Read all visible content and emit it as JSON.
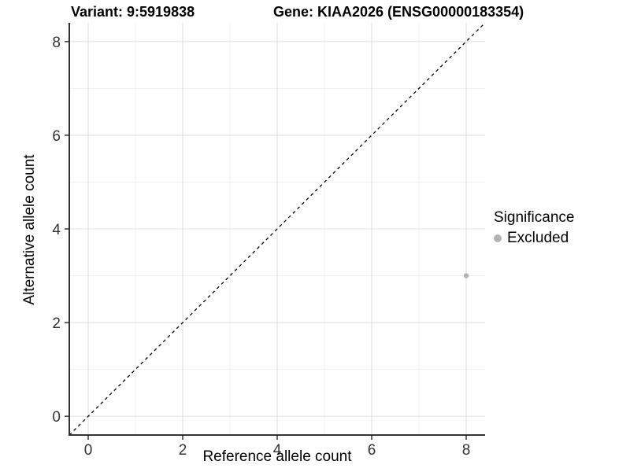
{
  "header": {
    "variant_title": "Variant: 9:5919838",
    "gene_title": "Gene: KIAA2026 (ENSG00000183354)"
  },
  "legend": {
    "title": "Significance",
    "items": [
      {
        "label": "Excluded",
        "color": "#b3b3b3"
      }
    ]
  },
  "chart_data": {
    "type": "scatter",
    "titles": [
      "Variant: 9:5919838",
      "Gene: KIAA2026 (ENSG00000183354)"
    ],
    "xlabel": "Reference allele count",
    "ylabel": "Alternative allele count",
    "xlim": [
      -0.4,
      8.4
    ],
    "ylim": [
      -0.4,
      8.4
    ],
    "x_ticks": [
      0,
      2,
      4,
      6,
      8
    ],
    "y_ticks": [
      0,
      2,
      4,
      6,
      8
    ],
    "x_grid_minor": [
      1,
      3,
      5,
      7
    ],
    "y_grid_minor": [
      1,
      3,
      5,
      7
    ],
    "grid": "on",
    "legend_position": "right",
    "legend_title": "Significance",
    "series": [
      {
        "name": "Excluded",
        "color": "#b3b3b3",
        "marker": "circle",
        "marker_radius": 3.2,
        "points": [
          {
            "x": 8,
            "y": 3
          }
        ]
      }
    ],
    "reference_line": {
      "kind": "identity",
      "slope": 1,
      "intercept": 0,
      "style": "dashed",
      "color": "#000000"
    },
    "colors": {
      "grid_major": "#e2e2e2",
      "grid_minor": "#f0f0f0",
      "axis_line": "#333333",
      "tick_mark": "#333333",
      "tick_text": "#333333",
      "background": "#ffffff"
    }
  }
}
